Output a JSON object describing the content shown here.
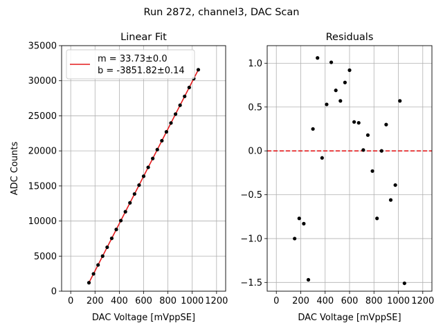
{
  "suptitle": "Run 2872, channel3, DAC Scan",
  "colors": {
    "fit_line": "#e41a1c",
    "zero_line": "#e41a1c",
    "points": "#000000",
    "grid": "#b0b0b0"
  },
  "chart_data": [
    {
      "type": "scatter",
      "title": "Linear Fit",
      "xlabel": "DAC Voltage [mVppSE]",
      "ylabel": "ADC Counts",
      "xlim": [
        -75,
        1275
      ],
      "ylim": [
        0,
        35000
      ],
      "xticks": [
        0,
        200,
        400,
        600,
        800,
        1000,
        1200
      ],
      "yticks": [
        0,
        5000,
        10000,
        15000,
        20000,
        25000,
        30000,
        35000
      ],
      "grid": true,
      "legend_position": "top-left",
      "fit": {
        "label_m": "m = 33.73±0.0",
        "label_b": "b = -3851.82±0.14",
        "m": 33.73,
        "b": -3851.82,
        "x_range": [
          150,
          1050
        ]
      },
      "series": [
        {
          "x": [
            150,
            187.5,
            225,
            262.5,
            300,
            337.5,
            375,
            412.5,
            450,
            487.5,
            525,
            562.5,
            600,
            637.5,
            675,
            712.5,
            750,
            787.5,
            825,
            862.5,
            900,
            937.5,
            975,
            1012.5,
            1050
          ],
          "y": [
            1208,
            2473,
            3738,
            5003,
            6268,
            7533,
            8798,
            10063,
            11328,
            12593,
            13858,
            15123,
            16388,
            17653,
            18918,
            20183,
            21448,
            22713,
            23978,
            25243,
            26508,
            27773,
            29038,
            30303,
            31568
          ]
        }
      ]
    },
    {
      "type": "scatter",
      "title": "Residuals",
      "xlabel": "DAC Voltage [mVppSE]",
      "ylabel": "",
      "xlim": [
        -75,
        1275
      ],
      "ylim": [
        -1.6,
        1.2
      ],
      "xticks": [
        0,
        200,
        400,
        600,
        800,
        1000,
        1200
      ],
      "yticks": [
        -1.5,
        -1.0,
        -0.5,
        0.0,
        0.5,
        1.0
      ],
      "ytick_labels": [
        "−1.5",
        "−1.0",
        "−0.5",
        "0.0",
        "0.5",
        "1.0"
      ],
      "grid": true,
      "reference_line_y": 0,
      "series": [
        {
          "x": [
            150,
            187.5,
            225,
            262.5,
            300,
            337.5,
            375,
            412.5,
            450,
            487.5,
            525,
            562.5,
            600,
            637.5,
            675,
            712.5,
            750,
            787.5,
            825,
            862.5,
            900,
            937.5,
            975,
            1012.5,
            1050
          ],
          "y": [
            -1.0,
            -0.77,
            -0.83,
            -1.47,
            0.25,
            1.06,
            -0.08,
            0.53,
            1.01,
            0.69,
            0.57,
            0.78,
            0.92,
            0.33,
            0.32,
            0.01,
            0.18,
            -0.23,
            -0.77,
            0.0,
            0.3,
            -0.56,
            -0.39,
            0.57,
            -1.51
          ]
        }
      ]
    }
  ]
}
